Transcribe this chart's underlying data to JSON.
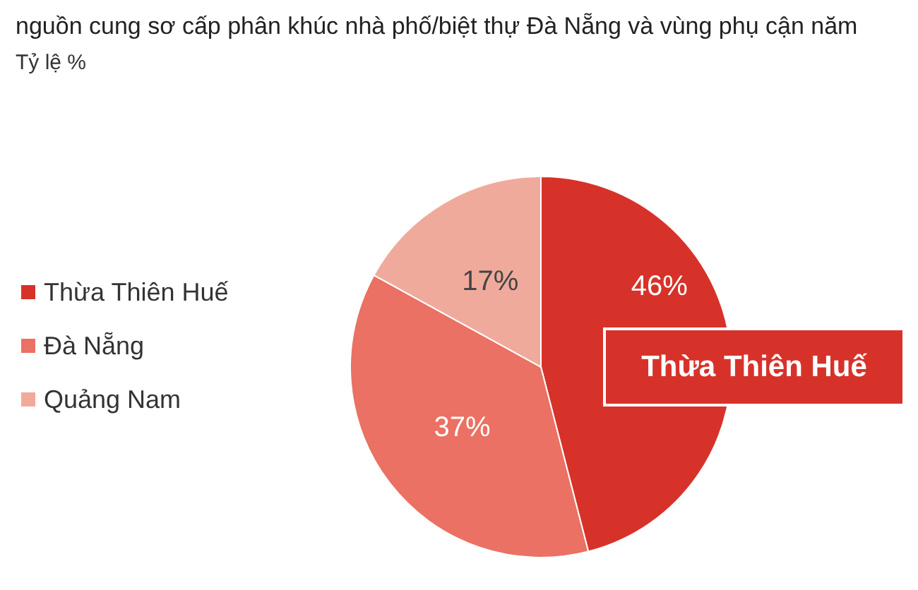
{
  "chart_data": {
    "type": "pie",
    "title": "nguồn cung sơ cấp phân khúc nhà phố/biệt thự Đà Nẵng và vùng phụ cận năm",
    "subtitle": "Tỷ lệ %",
    "categories": [
      "Thừa Thiên Huế",
      "Đà Nẵng",
      "Quảng Nam"
    ],
    "values": [
      46,
      37,
      17
    ],
    "colors": [
      "#d7322a",
      "#ea7163",
      "#f0aa9c"
    ],
    "value_labels": [
      "46%",
      "37%",
      "17%"
    ],
    "legend": "left",
    "annotations": [
      "Thừa Thiên Huế"
    ]
  }
}
